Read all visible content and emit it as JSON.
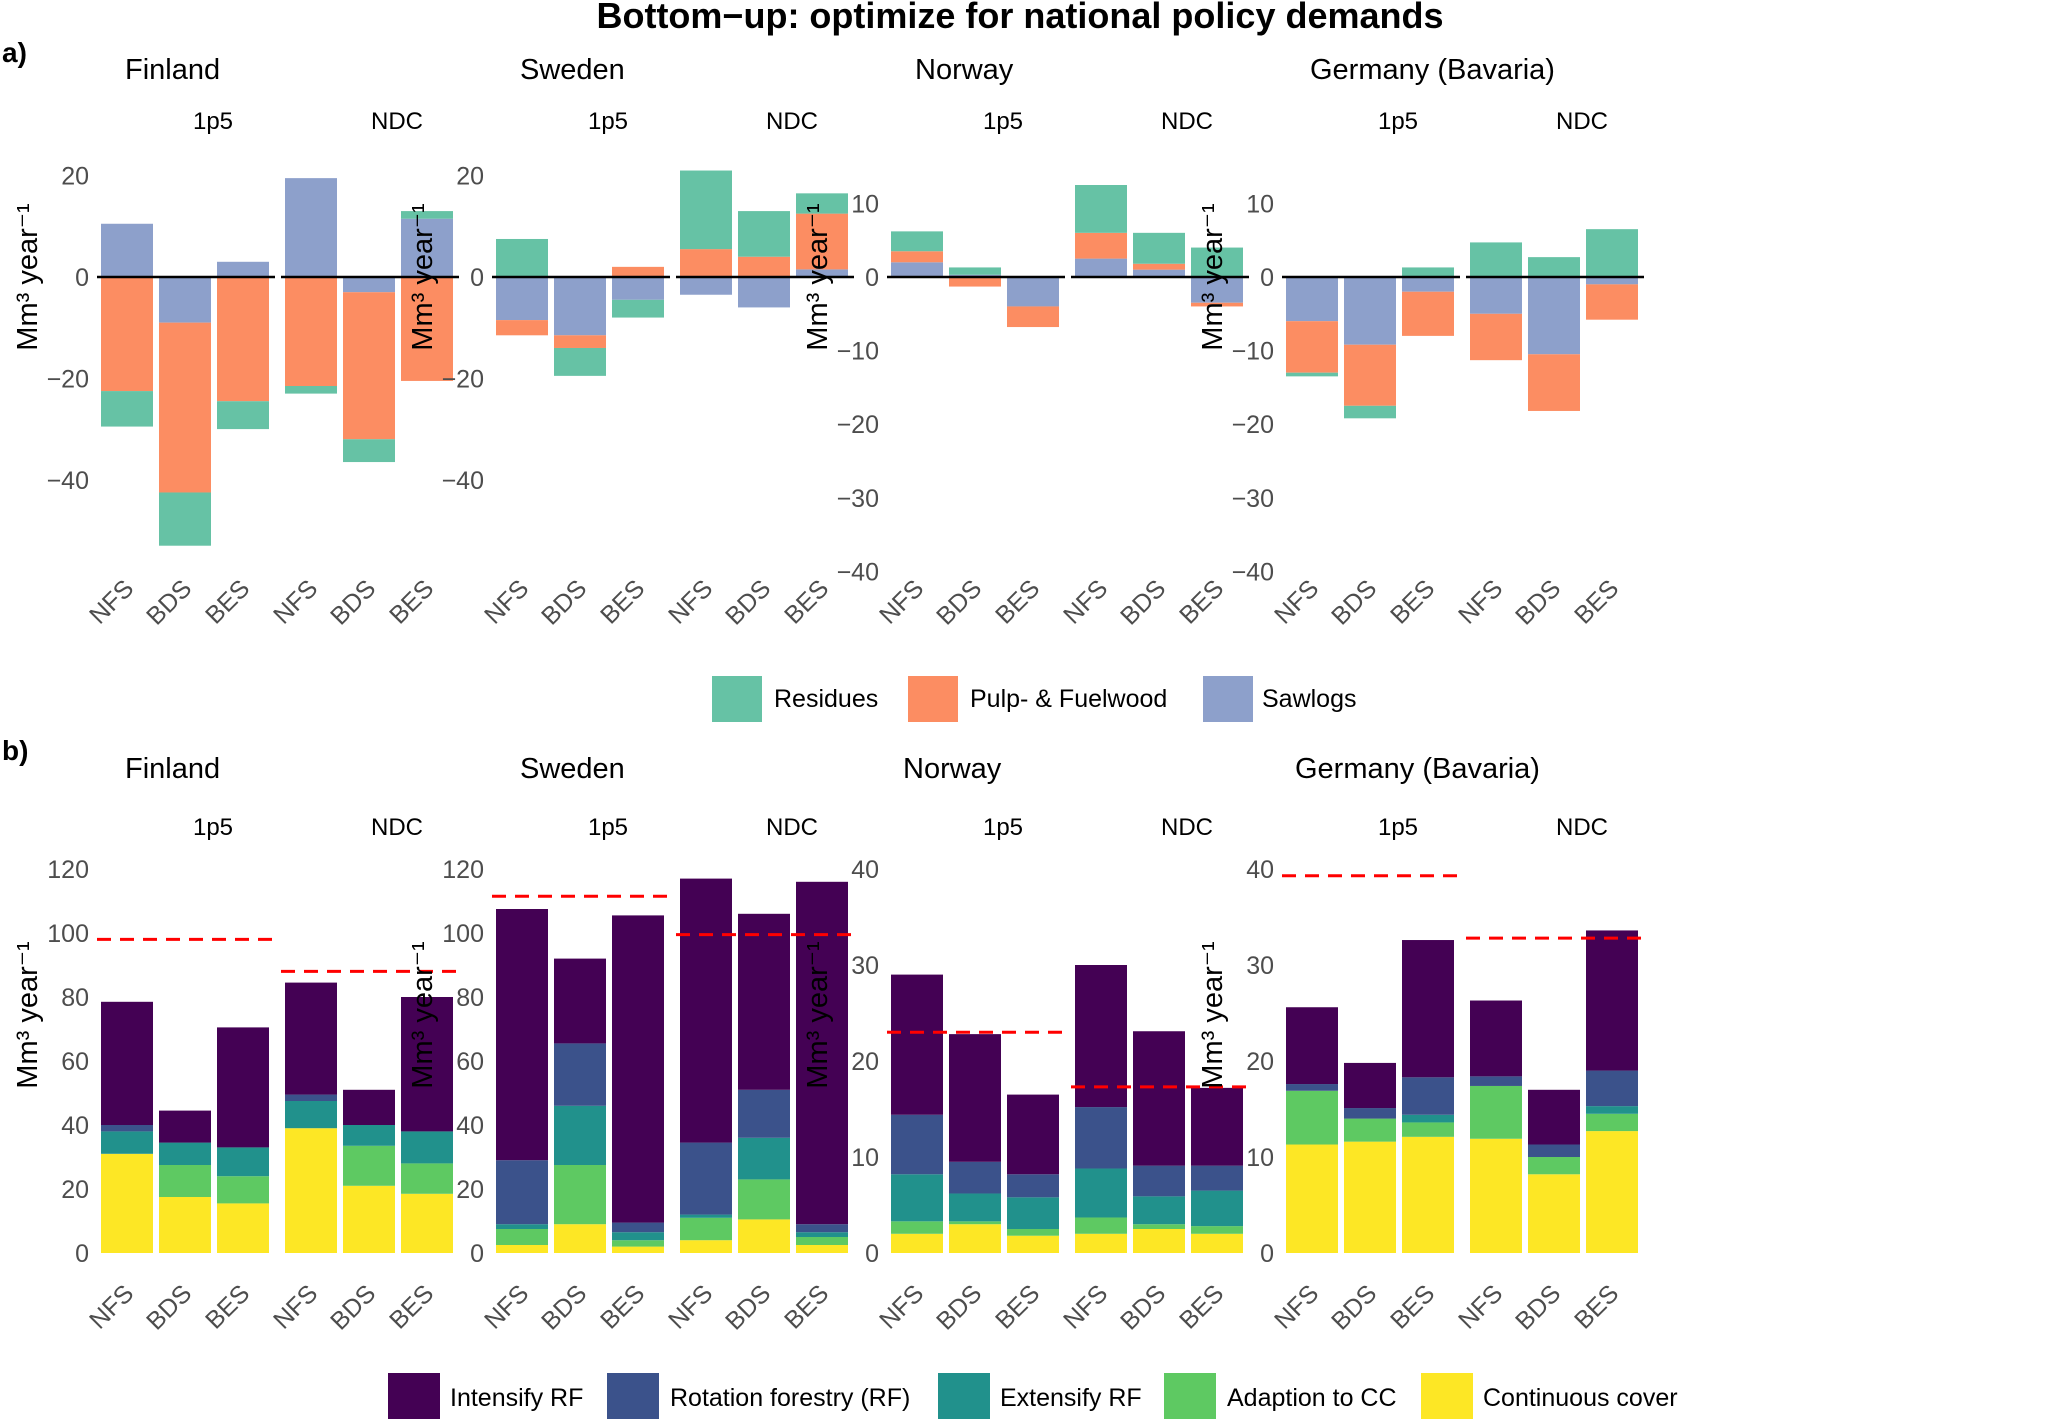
{
  "title": "Bottom−up: optimize for national policy demands",
  "y_axis_label": "Mm³ year⁻¹",
  "chart_data": [
    {
      "panel": "a)",
      "type": "bar",
      "stacked": true,
      "diverging": true,
      "facet_labels": [
        "1p5",
        "NDC"
      ],
      "categories": [
        "NFS",
        "BDS",
        "BES"
      ],
      "legend": [
        {
          "name": "Residues",
          "color": "#66c2a5"
        },
        {
          "name": "Pulp- & Fuelwood",
          "color": "#fc8d62"
        },
        {
          "name": "Sawlogs",
          "color": "#8da0cb"
        }
      ],
      "countries": [
        {
          "name": "Finland",
          "ylim": [
            -54,
            25
          ],
          "yticks": [
            20,
            0,
            -20,
            -40
          ],
          "groups": {
            "1p5": {
              "NFS": {
                "Sawlogs": 10.5,
                "Pulp- & Fuelwood": -22.5,
                "Residues": -7
              },
              "BDS": {
                "Sawlogs": -9,
                "Pulp- & Fuelwood": -33.5,
                "Residues": -10.5
              },
              "BES": {
                "Sawlogs": 3,
                "Pulp- & Fuelwood": -24.5,
                "Residues": -5.5
              }
            },
            "NDC": {
              "NFS": {
                "Sawlogs": 19.5,
                "Pulp- & Fuelwood": -21.5,
                "Residues": -1.5
              },
              "BDS": {
                "Sawlogs": -3,
                "Pulp- & Fuelwood": -29,
                "Residues": -4.5
              },
              "BES": {
                "Sawlogs": 11.5,
                "Pulp- & Fuelwood": -20.5,
                "Residues": 1.5
              }
            }
          }
        },
        {
          "name": "Sweden",
          "ylim": [
            -54,
            25
          ],
          "yticks": [
            20,
            0,
            -20,
            -40
          ],
          "groups": {
            "1p5": {
              "NFS": {
                "Sawlogs": -8.5,
                "Pulp- & Fuelwood": -3,
                "Residues": 7.5
              },
              "BDS": {
                "Sawlogs": -11.5,
                "Pulp- & Fuelwood": -2.5,
                "Residues": -5.5
              },
              "BES": {
                "Sawlogs": -4.5,
                "Pulp- & Fuelwood": 2,
                "Residues": -3.5
              }
            },
            "NDC": {
              "NFS": {
                "Sawlogs": -3.5,
                "Pulp- & Fuelwood": 5.5,
                "Residues": 15.5
              },
              "BDS": {
                "Sawlogs": -6,
                "Pulp- & Fuelwood": 4,
                "Residues": 9
              },
              "BES": {
                "Sawlogs": 1.5,
                "Pulp- & Fuelwood": 11,
                "Residues": 4
              }
            }
          }
        },
        {
          "name": "Norway",
          "ylim": [
            -42,
            12
          ],
          "yticks": [
            10,
            0,
            -10,
            -20,
            -30,
            -40
          ],
          "groups": {
            "1p5": {
              "NFS": {
                "Sawlogs": 2,
                "Pulp- & Fuelwood": 1.5,
                "Residues": 2.7
              },
              "BDS": {
                "Sawlogs": 0.3,
                "Pulp- & Fuelwood": -1.3,
                "Residues": 1
              },
              "BES": {
                "Sawlogs": -4,
                "Pulp- & Fuelwood": -2.8,
                "Residues": 0
              }
            },
            "NDC": {
              "NFS": {
                "Sawlogs": 2.5,
                "Pulp- & Fuelwood": 3.5,
                "Residues": 6.5
              },
              "BDS": {
                "Sawlogs": 1,
                "Pulp- & Fuelwood": 0.8,
                "Residues": 4.2
              },
              "BES": {
                "Sawlogs": -3.5,
                "Pulp- & Fuelwood": -0.5,
                "Residues": 4
              }
            }
          }
        },
        {
          "name": "Germany (Bavaria)",
          "ylim": [
            -42,
            12
          ],
          "yticks": [
            10,
            0,
            -10,
            -20,
            -30,
            -40
          ],
          "groups": {
            "1p5": {
              "NFS": {
                "Sawlogs": -6,
                "Pulp- & Fuelwood": -7,
                "Residues": -0.5
              },
              "BDS": {
                "Sawlogs": -9.2,
                "Pulp- & Fuelwood": -8.3,
                "Residues": -1.7
              },
              "BES": {
                "Sawlogs": -2,
                "Pulp- & Fuelwood": -6,
                "Residues": 1.3
              }
            },
            "NDC": {
              "NFS": {
                "Sawlogs": -5,
                "Pulp- & Fuelwood": -6.3,
                "Residues": 4.7
              },
              "BDS": {
                "Sawlogs": -10.5,
                "Pulp- & Fuelwood": -7.7,
                "Residues": 2.7
              },
              "BES": {
                "Sawlogs": -1,
                "Pulp- & Fuelwood": -4.8,
                "Residues": 6.5
              }
            }
          }
        }
      ]
    },
    {
      "panel": "b)",
      "type": "bar",
      "stacked": true,
      "facet_labels": [
        "1p5",
        "NDC"
      ],
      "categories": [
        "NFS",
        "BDS",
        "BES"
      ],
      "reference_line": "dashed red horizontal line per facet",
      "legend": [
        {
          "name": "Intensify RF",
          "color": "#440154"
        },
        {
          "name": "Rotation forestry (RF)",
          "color": "#3b528b"
        },
        {
          "name": "Extensify RF",
          "color": "#21918c"
        },
        {
          "name": "Adaption to CC",
          "color": "#5ec962"
        },
        {
          "name": "Continuous cover",
          "color": "#fde725"
        }
      ],
      "countries": [
        {
          "name": "Finland",
          "ylim": [
            0,
            125
          ],
          "yticks": [
            0,
            20,
            40,
            60,
            80,
            100,
            120
          ],
          "reference": {
            "1p5": 98,
            "NDC": 88
          },
          "groups": {
            "1p5": {
              "NFS": {
                "Continuous cover": 31,
                "Adaption to CC": 0,
                "Extensify RF": 7,
                "Rotation forestry (RF)": 2,
                "Intensify RF": 38.5
              },
              "BDS": {
                "Continuous cover": 17.5,
                "Adaption to CC": 10,
                "Extensify RF": 7,
                "Rotation forestry (RF)": 0,
                "Intensify RF": 10
              },
              "BES": {
                "Continuous cover": 15.5,
                "Adaption to CC": 8.5,
                "Extensify RF": 9,
                "Rotation forestry (RF)": 0,
                "Intensify RF": 37.5
              }
            },
            "NDC": {
              "NFS": {
                "Continuous cover": 39,
                "Adaption to CC": 0,
                "Extensify RF": 8.5,
                "Rotation forestry (RF)": 2,
                "Intensify RF": 35
              },
              "BDS": {
                "Continuous cover": 21,
                "Adaption to CC": 12.5,
                "Extensify RF": 6.5,
                "Rotation forestry (RF)": 0,
                "Intensify RF": 11
              },
              "BES": {
                "Continuous cover": 18.5,
                "Adaption to CC": 9.5,
                "Extensify RF": 10,
                "Rotation forestry (RF)": 0,
                "Intensify RF": 42
              }
            }
          }
        },
        {
          "name": "Sweden",
          "ylim": [
            0,
            125
          ],
          "yticks": [
            0,
            20,
            40,
            60,
            80,
            100,
            120
          ],
          "reference": {
            "1p5": 111.5,
            "NDC": 99.5
          },
          "groups": {
            "1p5": {
              "NFS": {
                "Continuous cover": 2.5,
                "Adaption to CC": 5,
                "Extensify RF": 1.5,
                "Rotation forestry (RF)": 20,
                "Intensify RF": 78.5
              },
              "BDS": {
                "Continuous cover": 9,
                "Adaption to CC": 18.5,
                "Extensify RF": 18.5,
                "Rotation forestry (RF)": 19.5,
                "Intensify RF": 26.5
              },
              "BES": {
                "Continuous cover": 2,
                "Adaption to CC": 2,
                "Extensify RF": 2.5,
                "Rotation forestry (RF)": 3,
                "Intensify RF": 96
              }
            },
            "NDC": {
              "NFS": {
                "Continuous cover": 4,
                "Adaption to CC": 7,
                "Extensify RF": 1,
                "Rotation forestry (RF)": 22.5,
                "Intensify RF": 82.5
              },
              "BDS": {
                "Continuous cover": 10.5,
                "Adaption to CC": 12.5,
                "Extensify RF": 13,
                "Rotation forestry (RF)": 15,
                "Intensify RF": 55
              },
              "BES": {
                "Continuous cover": 2.5,
                "Adaption to CC": 2.5,
                "Extensify RF": 1.5,
                "Rotation forestry (RF)": 2.5,
                "Intensify RF": 107
              }
            }
          }
        },
        {
          "name": "Norway",
          "ylim": [
            0,
            42
          ],
          "yticks": [
            0,
            10,
            20,
            30,
            40
          ],
          "reference": {
            "1p5": 23,
            "NDC": 17.3
          },
          "groups": {
            "1p5": {
              "NFS": {
                "Continuous cover": 2,
                "Adaption to CC": 1.3,
                "Extensify RF": 4.9,
                "Rotation forestry (RF)": 6.2,
                "Intensify RF": 14.6
              },
              "BDS": {
                "Continuous cover": 3,
                "Adaption to CC": 0.3,
                "Extensify RF": 2.9,
                "Rotation forestry (RF)": 3.3,
                "Intensify RF": 13.3
              },
              "BES": {
                "Continuous cover": 1.8,
                "Adaption to CC": 0.7,
                "Extensify RF": 3.3,
                "Rotation forestry (RF)": 2.4,
                "Intensify RF": 8.3
              }
            },
            "NDC": {
              "NFS": {
                "Continuous cover": 2,
                "Adaption to CC": 1.7,
                "Extensify RF": 5.1,
                "Rotation forestry (RF)": 6.4,
                "Intensify RF": 14.8
              },
              "BDS": {
                "Continuous cover": 2.5,
                "Adaption to CC": 0.5,
                "Extensify RF": 2.9,
                "Rotation forestry (RF)": 3.2,
                "Intensify RF": 14
              },
              "BES": {
                "Continuous cover": 2,
                "Adaption to CC": 0.8,
                "Extensify RF": 3.7,
                "Rotation forestry (RF)": 2.6,
                "Intensify RF": 8.1
              }
            }
          }
        },
        {
          "name": "Germany (Bavaria)",
          "ylim": [
            0,
            42
          ],
          "yticks": [
            0,
            10,
            20,
            30,
            40
          ],
          "reference": {
            "1p5": 39.3,
            "NDC": 32.8
          },
          "groups": {
            "1p5": {
              "NFS": {
                "Continuous cover": 11.3,
                "Adaption to CC": 5.6,
                "Extensify RF": 0,
                "Rotation forestry (RF)": 0.7,
                "Intensify RF": 8
              },
              "BDS": {
                "Continuous cover": 11.6,
                "Adaption to CC": 2.4,
                "Extensify RF": 0,
                "Rotation forestry (RF)": 1.1,
                "Intensify RF": 4.7
              },
              "BES": {
                "Continuous cover": 12.1,
                "Adaption to CC": 1.5,
                "Extensify RF": 0.8,
                "Rotation forestry (RF)": 3.9,
                "Intensify RF": 14.3
              }
            },
            "NDC": {
              "NFS": {
                "Continuous cover": 11.9,
                "Adaption to CC": 5.5,
                "Extensify RF": 0,
                "Rotation forestry (RF)": 1,
                "Intensify RF": 7.9
              },
              "BDS": {
                "Continuous cover": 8.2,
                "Adaption to CC": 1.8,
                "Extensify RF": 0,
                "Rotation forestry (RF)": 1.3,
                "Intensify RF": 5.7
              },
              "BES": {
                "Continuous cover": 12.7,
                "Adaption to CC": 1.8,
                "Extensify RF": 0.8,
                "Rotation forestry (RF)": 3.7,
                "Intensify RF": 14.6
              }
            }
          }
        }
      ]
    }
  ]
}
